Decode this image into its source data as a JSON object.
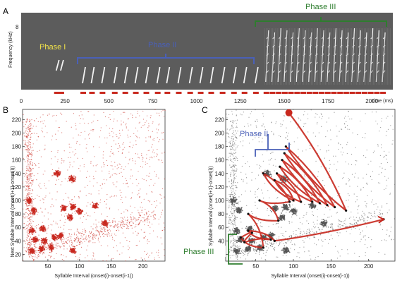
{
  "panels": {
    "a": "A",
    "b": "B",
    "c": "C"
  },
  "colors": {
    "dots": "#c8281e",
    "phase1": "#f2e34a",
    "phase2": "#4a60b8",
    "phase3": "#2e7d2e",
    "spectro_bg": "#5c5c5c"
  },
  "chart_data": [
    {
      "panel": "A",
      "type": "spectrogram",
      "ylabel": "Frequency (kHz)",
      "ytick": "8",
      "xlabel": "time (ms)",
      "xticks": [
        "0",
        "250",
        "500",
        "750",
        "1000",
        "1250",
        "1500",
        "1750",
        "2000"
      ],
      "xlim": [
        0,
        2120
      ],
      "phases": [
        {
          "label": "Phase I",
          "start_ms": 190,
          "end_ms": 260
        },
        {
          "label": "Phase II",
          "start_ms": 345,
          "end_ms": 1370
        },
        {
          "label": "Phase III",
          "start_ms": 1390,
          "end_ms": 2100
        }
      ],
      "syllable_onsets_ms": [
        200,
        225,
        350,
        400,
        460,
        530,
        590,
        650,
        710,
        775,
        830,
        895,
        960,
        1020,
        1080,
        1145,
        1210,
        1270,
        1335,
        1395,
        1430,
        1465,
        1500,
        1535,
        1570,
        1605,
        1640,
        1675,
        1710,
        1745,
        1780,
        1815,
        1850,
        1885,
        1920,
        1955,
        1990,
        2025,
        2060
      ]
    },
    {
      "panel": "B",
      "type": "scatter",
      "xlabel": "Syllable Interval (onset(i)-onset(i-1))",
      "ylabel": "Next Syllable Interval (onset(i+1)-onset(i))",
      "xticks": [
        50,
        100,
        150,
        200
      ],
      "yticks": [
        20,
        40,
        60,
        80,
        100,
        120,
        140,
        160,
        180,
        200,
        220
      ],
      "xlim": [
        10,
        235
      ],
      "ylim": [
        10,
        235
      ],
      "clusters": [
        {
          "x": 25,
          "y": 25
        },
        {
          "x": 40,
          "y": 28
        },
        {
          "x": 55,
          "y": 30
        },
        {
          "x": 30,
          "y": 42
        },
        {
          "x": 45,
          "y": 40
        },
        {
          "x": 60,
          "y": 45
        },
        {
          "x": 25,
          "y": 55
        },
        {
          "x": 42,
          "y": 58
        },
        {
          "x": 70,
          "y": 48
        },
        {
          "x": 90,
          "y": 26
        },
        {
          "x": 75,
          "y": 88
        },
        {
          "x": 90,
          "y": 90
        },
        {
          "x": 100,
          "y": 84
        },
        {
          "x": 85,
          "y": 75
        },
        {
          "x": 125,
          "y": 92
        },
        {
          "x": 140,
          "y": 66
        },
        {
          "x": 65,
          "y": 140
        },
        {
          "x": 88,
          "y": 132
        },
        {
          "x": 20,
          "y": 100
        },
        {
          "x": 28,
          "y": 85
        }
      ]
    },
    {
      "panel": "C",
      "type": "scatter-with-trajectory",
      "xlabel": "Syllable Interval (onset(i)-onset(i-1))",
      "ylabel": "Next Syllable Interval (onset(i+1)-onset(i))",
      "xticks": [
        50,
        100,
        150,
        200
      ],
      "yticks": [
        20,
        40,
        60,
        80,
        100,
        120,
        140,
        160,
        180,
        200,
        220
      ],
      "xlim": [
        10,
        235
      ],
      "ylim": [
        10,
        235
      ],
      "annotations": [
        "Phase II",
        "Phase III"
      ],
      "trajectory": [
        [
          94,
          230
        ],
        [
          170,
          85
        ],
        [
          90,
          180
        ],
        [
          155,
          90
        ],
        [
          88,
          170
        ],
        [
          145,
          93
        ],
        [
          85,
          160
        ],
        [
          135,
          96
        ],
        [
          82,
          150
        ],
        [
          125,
          98
        ],
        [
          78,
          140
        ],
        [
          110,
          98
        ],
        [
          75,
          130
        ],
        [
          100,
          100
        ],
        [
          60,
          140
        ],
        [
          95,
          98
        ],
        [
          55,
          100
        ],
        [
          80,
          70
        ],
        [
          40,
          80
        ],
        [
          60,
          30
        ],
        [
          30,
          45
        ],
        [
          45,
          52
        ],
        [
          35,
          38
        ],
        [
          70,
          42
        ],
        [
          40,
          55
        ],
        [
          75,
          40
        ],
        [
          220,
          72
        ]
      ]
    }
  ]
}
